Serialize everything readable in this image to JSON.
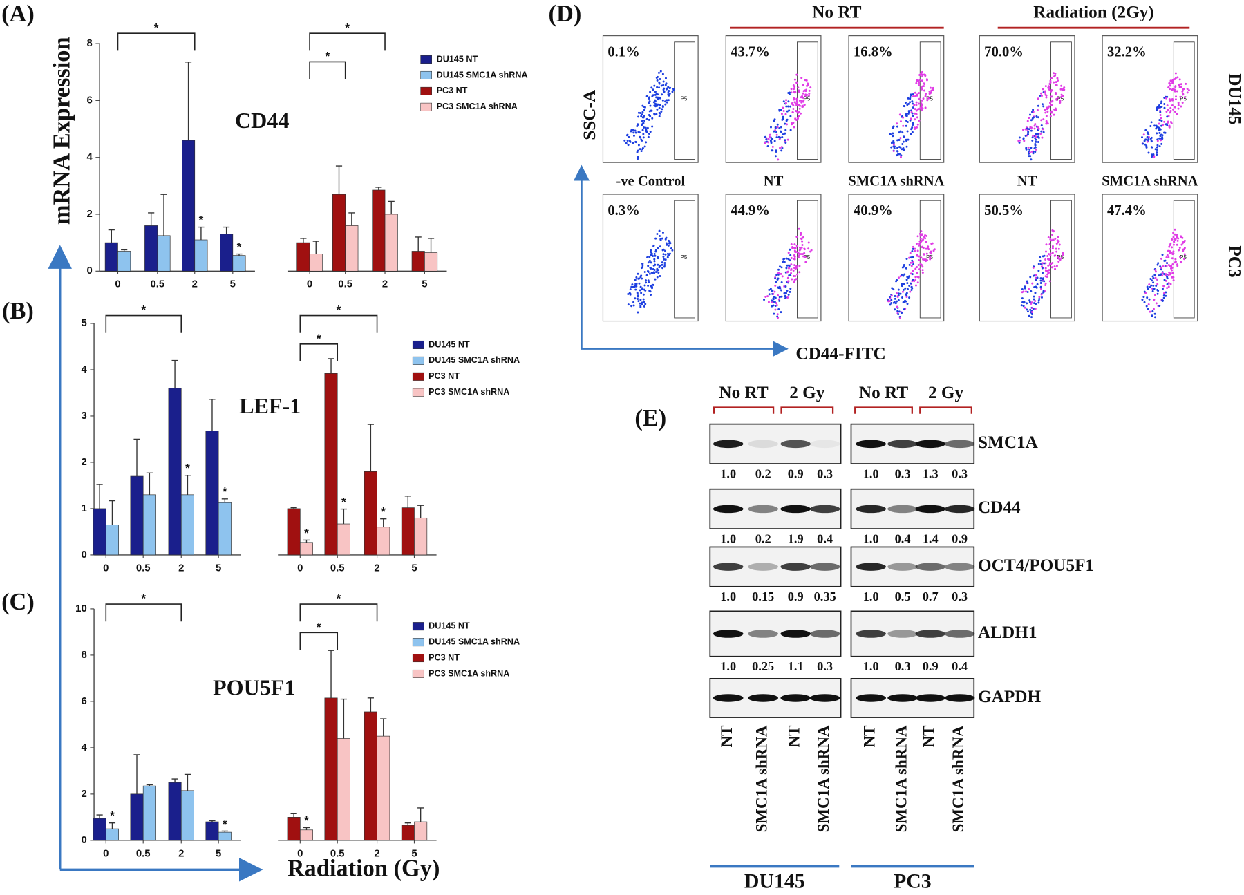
{
  "panel_labels": [
    "(A)",
    "(B)",
    "(C)",
    "(D)",
    "(E)"
  ],
  "chart_data": [
    {
      "type": "bar",
      "title": "CD44",
      "y_label": "mRNA Expression",
      "categories": [
        "0",
        "0.5",
        "2",
        "5",
        "0",
        "0.5",
        "2",
        "5"
      ],
      "ylim": [
        0,
        8
      ],
      "yticks": [
        0,
        2,
        4,
        6,
        8
      ],
      "series": [
        {
          "name": "DU145 NT",
          "color": "#1a1f8c",
          "values": [
            1.0,
            1.6,
            4.6,
            1.3,
            null,
            null,
            null,
            null
          ],
          "errors": [
            0.45,
            0.45,
            2.75,
            0.25,
            null,
            null,
            null,
            null
          ],
          "annotations": [
            null,
            null,
            null,
            null,
            null,
            null,
            null,
            null
          ]
        },
        {
          "name": "DU145 SMC1A shRNA",
          "color": "#8ec3ee",
          "values": [
            0.7,
            1.25,
            1.1,
            0.55,
            null,
            null,
            null,
            null
          ],
          "errors": [
            0.05,
            1.45,
            0.45,
            0.05,
            null,
            null,
            null,
            null
          ],
          "annotations": [
            null,
            null,
            "*",
            "*",
            null,
            null,
            null,
            null
          ]
        },
        {
          "name": "PC3 NT",
          "color": "#a01010",
          "values": [
            null,
            null,
            null,
            null,
            1.0,
            2.7,
            2.85,
            0.7
          ],
          "errors": [
            null,
            null,
            null,
            null,
            0.15,
            1.0,
            0.1,
            0.5
          ],
          "annotations": [
            null,
            null,
            null,
            null,
            null,
            null,
            null,
            null
          ]
        },
        {
          "name": "PC3 SMC1A shRNA",
          "color": "#f8c4c4",
          "values": [
            null,
            null,
            null,
            null,
            0.6,
            1.6,
            2.0,
            0.65
          ],
          "errors": [
            null,
            null,
            null,
            null,
            0.45,
            0.45,
            0.45,
            0.5
          ],
          "annotations": [
            null,
            null,
            null,
            null,
            null,
            null,
            null,
            null
          ]
        }
      ],
      "brackets": [
        "*",
        "*",
        "*"
      ]
    },
    {
      "type": "bar",
      "title": "LEF-1",
      "categories": [
        "0",
        "0.5",
        "2",
        "5",
        "0",
        "0.5",
        "2",
        "5"
      ],
      "ylim": [
        0,
        5
      ],
      "yticks": [
        0,
        1,
        2,
        3,
        4,
        5
      ],
      "series": [
        {
          "name": "DU145 NT",
          "color": "#1a1f8c",
          "values": [
            1.0,
            1.7,
            3.6,
            2.68,
            null,
            null,
            null,
            null
          ],
          "errors": [
            0.52,
            0.8,
            0.6,
            0.68,
            null,
            null,
            null,
            null
          ],
          "annotations": [
            null,
            null,
            null,
            null,
            null,
            null,
            null,
            null
          ]
        },
        {
          "name": "DU145 SMC1A shRNA",
          "color": "#8ec3ee",
          "values": [
            0.65,
            1.3,
            1.3,
            1.13,
            null,
            null,
            null,
            null
          ],
          "errors": [
            0.52,
            0.47,
            0.42,
            0.08,
            null,
            null,
            null,
            null
          ],
          "annotations": [
            null,
            null,
            "*",
            "*",
            null,
            null,
            null,
            null
          ]
        },
        {
          "name": "PC3 NT",
          "color": "#a01010",
          "values": [
            null,
            null,
            null,
            null,
            1.0,
            3.92,
            1.8,
            1.02
          ],
          "errors": [
            null,
            null,
            null,
            null,
            0.02,
            0.32,
            1.02,
            0.25
          ],
          "annotations": [
            null,
            null,
            null,
            null,
            null,
            null,
            null,
            null
          ]
        },
        {
          "name": "PC3 SMC1A shRNA",
          "color": "#f8c4c4",
          "values": [
            null,
            null,
            null,
            null,
            0.27,
            0.67,
            0.6,
            0.8
          ],
          "errors": [
            null,
            null,
            null,
            null,
            0.05,
            0.32,
            0.18,
            0.27
          ],
          "annotations": [
            null,
            null,
            null,
            null,
            "*",
            "*",
            "*",
            null
          ]
        }
      ],
      "brackets": [
        "*",
        "*",
        "*"
      ]
    },
    {
      "type": "bar",
      "title": "POU5F1",
      "x_label": "Radiation (Gy)",
      "categories": [
        "0",
        "0.5",
        "2",
        "5",
        "0",
        "0.5",
        "2",
        "5"
      ],
      "ylim": [
        0,
        10
      ],
      "yticks": [
        0,
        2,
        4,
        6,
        8,
        10
      ],
      "series": [
        {
          "name": "DU145 NT",
          "color": "#1a1f8c",
          "values": [
            0.95,
            2.0,
            2.5,
            0.8,
            null,
            null,
            null,
            null
          ],
          "errors": [
            0.15,
            1.7,
            0.15,
            0.05,
            null,
            null,
            null,
            null
          ],
          "annotations": [
            null,
            null,
            null,
            null,
            null,
            null,
            null,
            null
          ]
        },
        {
          "name": "DU145 SMC1A shRNA",
          "color": "#8ec3ee",
          "values": [
            0.5,
            2.35,
            2.15,
            0.35,
            null,
            null,
            null,
            null
          ],
          "errors": [
            0.25,
            0.05,
            0.7,
            0.05,
            null,
            null,
            null,
            null
          ],
          "annotations": [
            "*",
            null,
            null,
            "*",
            null,
            null,
            null,
            null
          ]
        },
        {
          "name": "PC3 NT",
          "color": "#a01010",
          "values": [
            null,
            null,
            null,
            null,
            1.0,
            6.15,
            5.55,
            0.65
          ],
          "errors": [
            null,
            null,
            null,
            null,
            0.15,
            2.05,
            0.6,
            0.1
          ],
          "annotations": [
            null,
            null,
            null,
            null,
            null,
            null,
            null,
            null
          ]
        },
        {
          "name": "PC3 SMC1A shRNA",
          "color": "#f8c4c4",
          "values": [
            null,
            null,
            null,
            null,
            0.45,
            4.4,
            4.5,
            0.8
          ],
          "errors": [
            null,
            null,
            null,
            null,
            0.1,
            1.7,
            0.75,
            0.6
          ],
          "annotations": [
            null,
            null,
            null,
            null,
            "*",
            null,
            null,
            null
          ]
        }
      ],
      "brackets": [
        "*",
        "*",
        "*"
      ]
    }
  ],
  "flow": {
    "conditions": [
      "No RT",
      "Radiation (2Gy)"
    ],
    "y_axis": "SSC-A",
    "x_axis": "CD44-FITC",
    "cell_lines": [
      "DU145",
      "PC3"
    ],
    "columns": [
      "-ve Control",
      "NT",
      "SMC1A shRNA",
      "NT",
      "SMC1A shRNA"
    ],
    "gate_label": "P5",
    "percentages": [
      [
        "0.1%",
        "43.7%",
        "16.8%",
        "70.0%",
        "32.2%"
      ],
      [
        "0.3%",
        "44.9%",
        "40.9%",
        "50.5%",
        "47.4%"
      ]
    ]
  },
  "blot": {
    "conditions": [
      "No RT",
      "2 Gy",
      "No RT",
      "2 Gy"
    ],
    "proteins": [
      {
        "name": "SMC1A",
        "quant": [
          "1.0",
          "0.2",
          "0.9",
          "0.3",
          "1.0",
          "0.3",
          "1.3",
          "0.3"
        ]
      },
      {
        "name": "CD44",
        "quant": [
          "1.0",
          "0.2",
          "1.9",
          "0.4",
          "1.0",
          "0.4",
          "1.4",
          "0.9"
        ]
      },
      {
        "name": "OCT4/POU5F1",
        "quant": [
          "1.0",
          "0.15",
          "0.9",
          "0.35",
          "1.0",
          "0.5",
          "0.7",
          "0.3"
        ]
      },
      {
        "name": "ALDH1",
        "quant": [
          "1.0",
          "0.25",
          "1.1",
          "0.3",
          "1.0",
          "0.3",
          "0.9",
          "0.4"
        ]
      },
      {
        "name": "GAPDH"
      }
    ],
    "lanes": [
      "NT",
      "SMC1A shRNA",
      "NT",
      "SMC1A shRNA",
      "NT",
      "SMC1A shRNA",
      "NT",
      "SMC1A shRNA"
    ],
    "cell_lines": [
      "DU145",
      "PC3"
    ]
  }
}
